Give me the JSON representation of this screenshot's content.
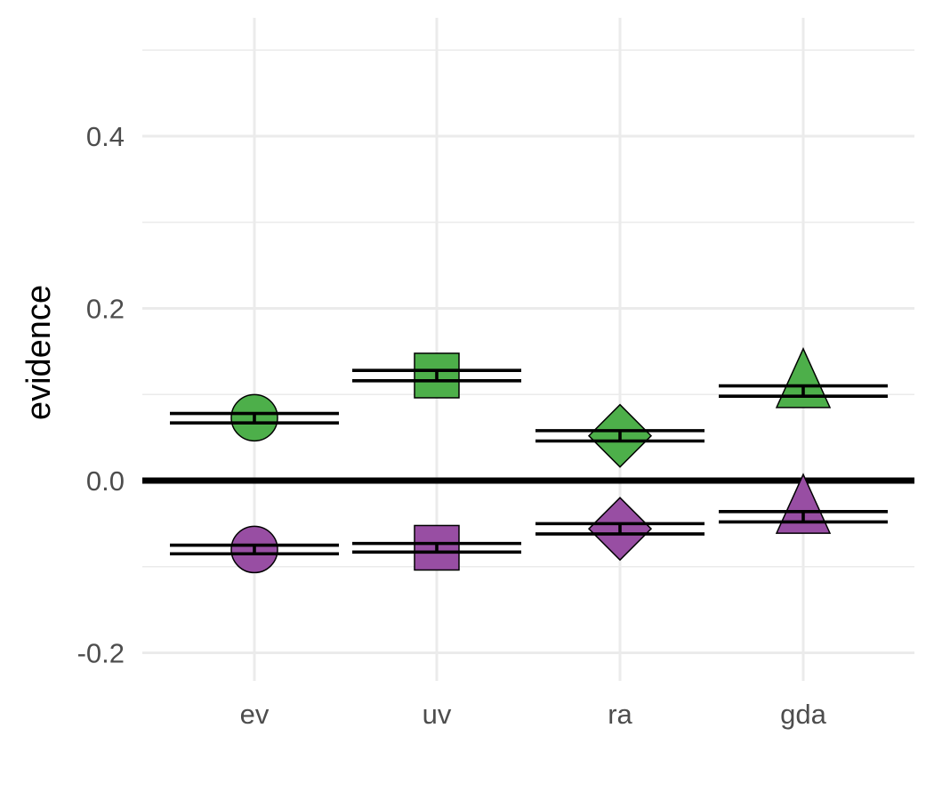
{
  "chart_data": {
    "type": "scatter",
    "title": "",
    "xlabel": "",
    "ylabel": "evidence",
    "categories": [
      "ev",
      "uv",
      "ra",
      "gda"
    ],
    "ylim": [
      -0.23,
      0.5
    ],
    "y_ticks": [
      -0.2,
      0.0,
      0.2,
      0.4
    ],
    "y_tick_labels": [
      "-0.2",
      "0.0",
      "0.2",
      "0.4"
    ],
    "grid": true,
    "reference_line_y": 0,
    "shapes": [
      "circle",
      "square",
      "diamond",
      "triangle"
    ],
    "series": [
      {
        "color": "#4DAF4A",
        "values": [
          0.073,
          0.122,
          0.052,
          0.104
        ],
        "error_low": [
          0.067,
          0.116,
          0.046,
          0.098
        ],
        "error_high": [
          0.078,
          0.128,
          0.058,
          0.11
        ]
      },
      {
        "color": "#984EA3",
        "values": [
          -0.08,
          -0.078,
          -0.056,
          -0.042
        ],
        "error_low": [
          -0.085,
          -0.083,
          -0.062,
          -0.048
        ],
        "error_high": [
          -0.075,
          -0.073,
          -0.05,
          -0.036
        ]
      }
    ]
  }
}
